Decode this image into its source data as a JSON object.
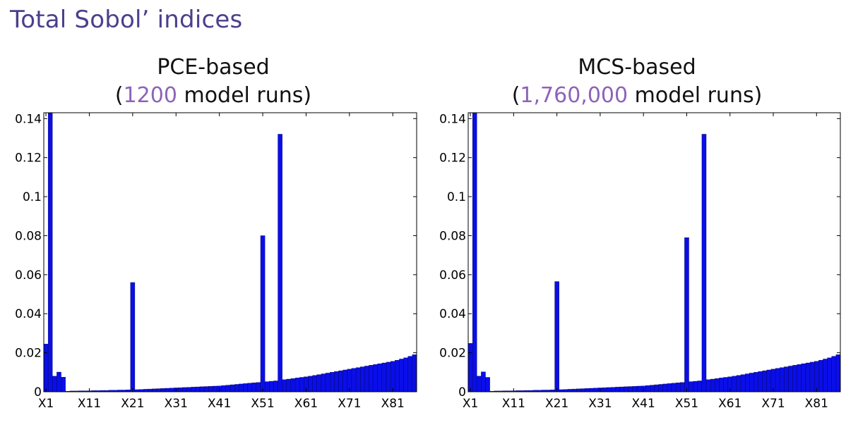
{
  "slide": {
    "title": "Total Sobol’ indices"
  },
  "colors": {
    "bar": "#0a0ee8",
    "title": "#4b3f8c",
    "highlight": "#8e63b8"
  },
  "chart_data": [
    {
      "type": "bar",
      "title_line1": "PCE-based",
      "title_line2": {
        "open": "(",
        "number": "1200",
        "rest": " model runs)"
      },
      "xlabel": "",
      "ylabel": "",
      "ylim": [
        0,
        0.143
      ],
      "yticks": [
        "0",
        "0.02",
        "0.04",
        "0.06",
        "0.08",
        "0.1",
        "0.12",
        "0.14"
      ],
      "ytick_values": [
        0,
        0.02,
        0.04,
        0.06,
        0.08,
        0.1,
        0.12,
        0.14
      ],
      "xticks": [
        "X1",
        "X11",
        "X21",
        "X31",
        "X41",
        "X51",
        "X61",
        "X71",
        "X81"
      ],
      "xtick_positions": [
        1,
        11,
        21,
        31,
        41,
        51,
        61,
        71,
        81
      ],
      "grid": false,
      "categories": [
        "X1",
        "X2",
        "X3",
        "X4",
        "X5",
        "X6",
        "X7",
        "X8",
        "X9",
        "X10",
        "X11",
        "X12",
        "X13",
        "X14",
        "X15",
        "X16",
        "X17",
        "X18",
        "X19",
        "X20",
        "X21",
        "X22",
        "X23",
        "X24",
        "X25",
        "X26",
        "X27",
        "X28",
        "X29",
        "X30",
        "X31",
        "X32",
        "X33",
        "X34",
        "X35",
        "X36",
        "X37",
        "X38",
        "X39",
        "X40",
        "X41",
        "X42",
        "X43",
        "X44",
        "X45",
        "X46",
        "X47",
        "X48",
        "X49",
        "X50",
        "X51",
        "X52",
        "X53",
        "X54",
        "X55",
        "X56",
        "X57",
        "X58",
        "X59",
        "X60",
        "X61",
        "X62",
        "X63",
        "X64",
        "X65",
        "X66",
        "X67",
        "X68",
        "X69",
        "X70",
        "X71",
        "X72",
        "X73",
        "X74",
        "X75",
        "X76",
        "X77",
        "X78",
        "X79",
        "X80",
        "X81",
        "X82",
        "X83",
        "X84",
        "X85",
        "X86"
      ],
      "values": [
        0.0245,
        0.144,
        0.008,
        0.0101,
        0.0075,
        0.0003,
        0.0004,
        0.0004,
        0.0005,
        0.0005,
        0.0005,
        0.0006,
        0.0006,
        0.0007,
        0.0007,
        0.0008,
        0.0008,
        0.0009,
        0.0009,
        0.001,
        0.056,
        0.0011,
        0.0012,
        0.0013,
        0.0014,
        0.0015,
        0.0016,
        0.0017,
        0.0018,
        0.0019,
        0.002,
        0.0021,
        0.0022,
        0.0023,
        0.0024,
        0.0025,
        0.0026,
        0.0027,
        0.0028,
        0.0029,
        0.003,
        0.0032,
        0.0034,
        0.0036,
        0.0038,
        0.004,
        0.0042,
        0.0044,
        0.0046,
        0.0048,
        0.08,
        0.0052,
        0.0054,
        0.0056,
        0.132,
        0.0062,
        0.0065,
        0.0068,
        0.0071,
        0.0074,
        0.0077,
        0.008,
        0.0084,
        0.0088,
        0.0092,
        0.0096,
        0.01,
        0.0104,
        0.0108,
        0.0112,
        0.0116,
        0.012,
        0.0124,
        0.0128,
        0.0132,
        0.0136,
        0.014,
        0.0144,
        0.0148,
        0.0152,
        0.0156,
        0.0162,
        0.0168,
        0.0174,
        0.0182,
        0.019
      ]
    },
    {
      "type": "bar",
      "title_line1": "MCS-based",
      "title_line2": {
        "open": "(",
        "number": "1,760,000",
        "rest": " model runs)"
      },
      "xlabel": "",
      "ylabel": "",
      "ylim": [
        0,
        0.143
      ],
      "yticks": [
        "0",
        "0.02",
        "0.04",
        "0.06",
        "0.08",
        "0.1",
        "0.12",
        "0.14"
      ],
      "ytick_values": [
        0,
        0.02,
        0.04,
        0.06,
        0.08,
        0.1,
        0.12,
        0.14
      ],
      "xticks": [
        "X1",
        "X11",
        "X21",
        "X31",
        "X41",
        "X51",
        "X61",
        "X71",
        "X81"
      ],
      "xtick_positions": [
        1,
        11,
        21,
        31,
        41,
        51,
        61,
        71,
        81
      ],
      "grid": false,
      "categories": [
        "X1",
        "X2",
        "X3",
        "X4",
        "X5",
        "X6",
        "X7",
        "X8",
        "X9",
        "X10",
        "X11",
        "X12",
        "X13",
        "X14",
        "X15",
        "X16",
        "X17",
        "X18",
        "X19",
        "X20",
        "X21",
        "X22",
        "X23",
        "X24",
        "X25",
        "X26",
        "X27",
        "X28",
        "X29",
        "X30",
        "X31",
        "X32",
        "X33",
        "X34",
        "X35",
        "X36",
        "X37",
        "X38",
        "X39",
        "X40",
        "X41",
        "X42",
        "X43",
        "X44",
        "X45",
        "X46",
        "X47",
        "X48",
        "X49",
        "X50",
        "X51",
        "X52",
        "X53",
        "X54",
        "X55",
        "X56",
        "X57",
        "X58",
        "X59",
        "X60",
        "X61",
        "X62",
        "X63",
        "X64",
        "X65",
        "X66",
        "X67",
        "X68",
        "X69",
        "X70",
        "X71",
        "X72",
        "X73",
        "X74",
        "X75",
        "X76",
        "X77",
        "X78",
        "X79",
        "X80",
        "X81",
        "X82",
        "X83",
        "X84",
        "X85",
        "X86"
      ],
      "values": [
        0.0248,
        0.144,
        0.008,
        0.0102,
        0.0074,
        0.0003,
        0.0004,
        0.0004,
        0.0005,
        0.0005,
        0.0005,
        0.0006,
        0.0006,
        0.0007,
        0.0007,
        0.0008,
        0.0008,
        0.0009,
        0.0009,
        0.001,
        0.0565,
        0.0011,
        0.0012,
        0.0013,
        0.0014,
        0.0015,
        0.0016,
        0.0017,
        0.0018,
        0.0019,
        0.002,
        0.0021,
        0.0022,
        0.0023,
        0.0024,
        0.0025,
        0.0026,
        0.0027,
        0.0028,
        0.0029,
        0.003,
        0.0032,
        0.0034,
        0.0036,
        0.0038,
        0.004,
        0.0042,
        0.0044,
        0.0046,
        0.0048,
        0.079,
        0.0052,
        0.0054,
        0.0056,
        0.132,
        0.0062,
        0.0065,
        0.0068,
        0.0071,
        0.0074,
        0.0077,
        0.008,
        0.0084,
        0.0088,
        0.0092,
        0.0096,
        0.01,
        0.0104,
        0.0108,
        0.0112,
        0.0116,
        0.012,
        0.0124,
        0.0128,
        0.0132,
        0.0136,
        0.014,
        0.0144,
        0.0148,
        0.0152,
        0.0156,
        0.0162,
        0.0168,
        0.0174,
        0.0182,
        0.019
      ]
    }
  ]
}
